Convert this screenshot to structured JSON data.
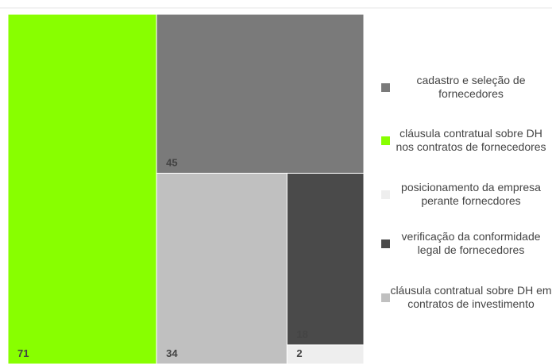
{
  "chart_data": {
    "type": "treemap",
    "series": [
      {
        "name": "cadastro e seleção de fornecedores",
        "color": "#7a7a7a",
        "values": [
          45
        ]
      },
      {
        "name": "cláusula contratual sobre DH nos contratos de fornecedores",
        "color": "#88ff00",
        "values": [
          71
        ]
      },
      {
        "name": "posicionamento da empresa perante fornecdores",
        "color": "#eeeeee",
        "values": [
          2
        ]
      },
      {
        "name": "verificação da conformidade legal de fornecedores",
        "color": "#4a4a4a",
        "values": [
          18
        ]
      },
      {
        "name": "cláusula contratual sobre DH em contratos de investimento",
        "color": "#c0c0c0",
        "values": [
          34
        ]
      }
    ],
    "legend": "right"
  }
}
